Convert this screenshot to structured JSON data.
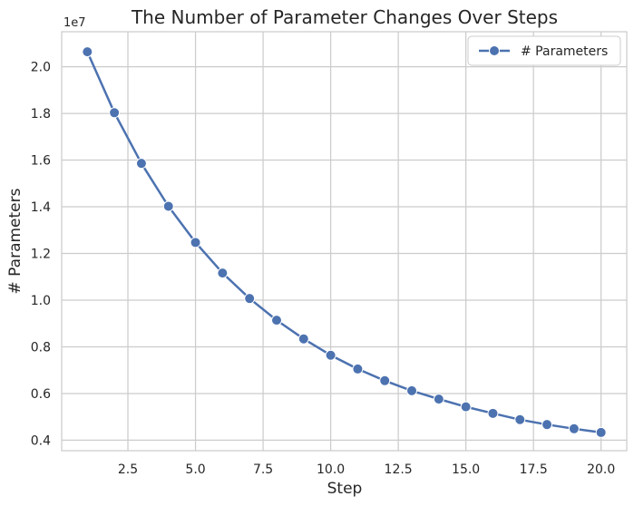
{
  "chart_data": {
    "type": "line",
    "title": "The Number of Parameter Changes Over Steps",
    "xlabel": "Step",
    "ylabel": "# Parameters",
    "y_offset_label": "1e7",
    "xlim": [
      0.05,
      20.95
    ],
    "ylim": [
      3.55,
      21.5
    ],
    "x_ticks": [
      2.5,
      5.0,
      7.5,
      10.0,
      12.5,
      15.0,
      17.5,
      20.0
    ],
    "x_tick_labels": [
      "2.5",
      "5.0",
      "7.5",
      "10.0",
      "12.5",
      "15.0",
      "17.5",
      "20.0"
    ],
    "y_ticks": [
      4,
      6,
      8,
      10,
      12,
      14,
      16,
      18,
      20
    ],
    "y_tick_labels": [
      "0.4",
      "0.6",
      "0.8",
      "1.0",
      "1.2",
      "1.4",
      "1.6",
      "1.8",
      "2.0"
    ],
    "grid": true,
    "legend_position": "top-right",
    "colors": {
      "line": "#4c72b0",
      "grid": "#cccccc",
      "frame": "#cccccc",
      "text": "#262626"
    },
    "series": [
      {
        "name": "# Parameters",
        "x": [
          1,
          2,
          3,
          4,
          5,
          6,
          7,
          8,
          9,
          10,
          11,
          12,
          13,
          14,
          15,
          16,
          17,
          18,
          19,
          20
        ],
        "y": [
          20.64,
          18.03,
          15.86,
          14.02,
          12.47,
          11.16,
          10.07,
          9.14,
          8.34,
          7.64,
          7.05,
          6.55,
          6.12,
          5.76,
          5.43,
          5.15,
          4.88,
          4.67,
          4.49,
          4.33
        ]
      }
    ]
  }
}
